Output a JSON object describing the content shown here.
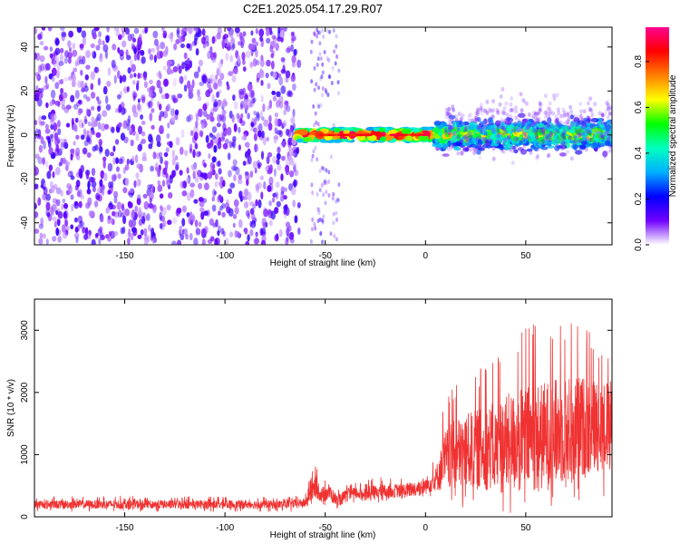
{
  "title": "C2E1.2025.054.17.29.R07",
  "colorbar": {
    "label": "Normalized spectral amplitude",
    "ticks": [
      "0.0",
      "0.2",
      "0.4",
      "0.6",
      "0.8"
    ],
    "tick_values": [
      0.0,
      0.2,
      0.4,
      0.6,
      0.8
    ],
    "range": [
      0,
      0.95
    ],
    "colormap": [
      "#ffffff",
      "#7000ff",
      "#0000ff",
      "#00b0ff",
      "#00ffc0",
      "#00ff00",
      "#ffff00",
      "#ff8000",
      "#ff0000",
      "#ff0090"
    ]
  },
  "chart_data": [
    {
      "type": "heatmap",
      "title": "C2E1.2025.054.17.29.R07",
      "xlabel": "Height of straight line (km)",
      "ylabel": "Frequency (Hz)",
      "xlim": [
        -195,
        93
      ],
      "ylim": [
        -50,
        49
      ],
      "xticks": [
        -150,
        -100,
        -50,
        0,
        50
      ],
      "yticks": [
        -40,
        -20,
        0,
        20,
        40
      ],
      "regions": [
        {
          "x": [
            -195,
            -63
          ],
          "freq": [
            -50,
            49
          ],
          "amplitude": 0.12,
          "pattern": "broadband noise"
        },
        {
          "x": [
            -57,
            -43
          ],
          "freq": [
            -50,
            49
          ],
          "amplitude": 0.05,
          "pattern": "sparse broadband noise"
        },
        {
          "x": [
            -64,
            5
          ],
          "freq": [
            -3,
            3
          ],
          "amplitude": 0.9,
          "pattern": "narrow band near 0 Hz"
        },
        {
          "x": [
            5,
            93
          ],
          "freq": [
            -10,
            12
          ],
          "amplitude": 0.45,
          "pattern": "widening band"
        },
        {
          "x": [
            10,
            93
          ],
          "freq": [
            -15,
            22
          ],
          "amplitude": 0.05,
          "pattern": "faint halo"
        }
      ]
    },
    {
      "type": "line",
      "xlabel": "Height of straight line (km)",
      "ylabel": "SNR (10 * v/v)",
      "xlim": [
        -195,
        93
      ],
      "ylim": [
        0,
        3500
      ],
      "xticks": [
        -150,
        -100,
        -50,
        0,
        50
      ],
      "yticks": [
        0,
        1000,
        2000,
        3000
      ],
      "color": "#f03232",
      "envelope": {
        "x": [
          -195,
          -150,
          -100,
          -70,
          -60,
          -55,
          -52,
          -48,
          -44,
          -40,
          -35,
          -30,
          -20,
          -10,
          0,
          5,
          10,
          15,
          20,
          30,
          40,
          50,
          60,
          70,
          80,
          93
        ],
        "mean": [
          200,
          200,
          200,
          200,
          220,
          500,
          350,
          400,
          250,
          330,
          380,
          380,
          420,
          420,
          500,
          600,
          900,
          1000,
          1050,
          1100,
          1150,
          1250,
          1300,
          1400,
          1450,
          1500
        ],
        "max": [
          330,
          340,
          330,
          320,
          360,
          920,
          600,
          690,
          450,
          530,
          560,
          600,
          650,
          680,
          800,
          1000,
          2000,
          2200,
          2300,
          2500,
          3000,
          3150,
          3300,
          3300,
          3200,
          2800
        ],
        "min": [
          80,
          80,
          80,
          80,
          80,
          250,
          150,
          200,
          100,
          150,
          200,
          200,
          250,
          250,
          300,
          350,
          150,
          100,
          80,
          60,
          40,
          40,
          80,
          150,
          200,
          300
        ]
      }
    }
  ]
}
